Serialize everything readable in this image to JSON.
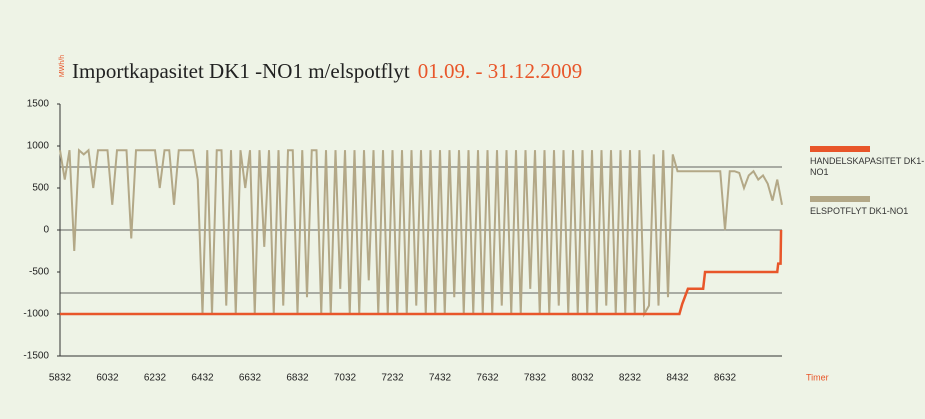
{
  "chart_data": {
    "type": "line",
    "title": "Importkapasitet DK1 -NO1 m/elspotflyt",
    "subtitle": "01.09. - 31.12.2009",
    "y_label": "MWh/h",
    "x_label": "Timer",
    "xlim": [
      5832,
      8872
    ],
    "ylim": [
      -1500,
      1500
    ],
    "xticks": [
      5832,
      6032,
      6232,
      6432,
      6632,
      6832,
      7032,
      7232,
      7432,
      7632,
      7832,
      8032,
      8232,
      8432,
      8632
    ],
    "yticks": [
      -1500,
      -1000,
      -500,
      0,
      500,
      1000,
      1500
    ],
    "hlines": [
      -750,
      0,
      750
    ],
    "legend": "right",
    "series": [
      {
        "name": "HANDELSKAPASITET DK1-NO1",
        "color": "#e8562a",
        "x": [
          5832,
          8440,
          8452,
          8476,
          8540,
          8548,
          8852,
          8856,
          8866,
          8868
        ],
        "values": [
          -1000,
          -1000,
          -880,
          -700,
          -700,
          -500,
          -500,
          -400,
          -400,
          0
        ]
      },
      {
        "name": "ELSPOTFLYT DK1-NO1",
        "color": "#b3a887",
        "x": [
          5832,
          5852,
          5872,
          5892,
          5912,
          5932,
          5952,
          5972,
          5992,
          6012,
          6032,
          6052,
          6072,
          6092,
          6112,
          6132,
          6152,
          6172,
          6192,
          6212,
          6232,
          6252,
          6272,
          6292,
          6312,
          6332,
          6352,
          6372,
          6392,
          6412,
          6432,
          6452,
          6472,
          6492,
          6512,
          6532,
          6552,
          6572,
          6592,
          6612,
          6632,
          6652,
          6672,
          6692,
          6712,
          6732,
          6752,
          6772,
          6792,
          6812,
          6832,
          6852,
          6872,
          6892,
          6912,
          6932,
          6952,
          6972,
          6992,
          7012,
          7032,
          7052,
          7072,
          7092,
          7112,
          7132,
          7152,
          7172,
          7192,
          7212,
          7232,
          7252,
          7272,
          7292,
          7312,
          7332,
          7352,
          7372,
          7392,
          7412,
          7432,
          7452,
          7472,
          7492,
          7512,
          7532,
          7552,
          7572,
          7592,
          7612,
          7632,
          7652,
          7672,
          7692,
          7712,
          7732,
          7752,
          7772,
          7792,
          7812,
          7832,
          7852,
          7872,
          7892,
          7912,
          7932,
          7952,
          7972,
          7992,
          8012,
          8032,
          8052,
          8072,
          8092,
          8112,
          8132,
          8152,
          8172,
          8192,
          8212,
          8232,
          8252,
          8272,
          8292,
          8312,
          8332,
          8352,
          8372,
          8392,
          8412,
          8432,
          8452,
          8472,
          8492,
          8512,
          8532,
          8552,
          8572,
          8592,
          8612,
          8632,
          8652,
          8672,
          8692,
          8712,
          8732,
          8752,
          8772,
          8792,
          8812,
          8832,
          8852,
          8872
        ],
        "values": [
          950,
          600,
          950,
          -250,
          950,
          900,
          950,
          500,
          950,
          950,
          950,
          300,
          950,
          950,
          950,
          -100,
          950,
          950,
          950,
          950,
          950,
          500,
          950,
          950,
          300,
          950,
          950,
          950,
          950,
          600,
          -1000,
          950,
          -1000,
          950,
          950,
          -900,
          950,
          -1000,
          950,
          500,
          950,
          -1000,
          950,
          -200,
          950,
          -1000,
          950,
          -900,
          950,
          950,
          -1000,
          950,
          -800,
          950,
          950,
          -1000,
          950,
          -1000,
          950,
          -700,
          950,
          -1000,
          950,
          -1000,
          950,
          -600,
          950,
          -1000,
          950,
          -1000,
          950,
          -1000,
          950,
          -1000,
          950,
          -900,
          950,
          -1000,
          950,
          -1000,
          950,
          -1000,
          950,
          -800,
          950,
          -1000,
          950,
          -1000,
          950,
          -1000,
          950,
          -1000,
          950,
          -900,
          950,
          -1000,
          950,
          -1000,
          950,
          -700,
          950,
          -1000,
          950,
          -1000,
          950,
          -900,
          950,
          -1000,
          950,
          -1000,
          950,
          -1000,
          950,
          -1000,
          950,
          -900,
          950,
          -1000,
          950,
          -1000,
          950,
          -1000,
          950,
          -1000,
          -900,
          900,
          -900,
          950,
          -800,
          900,
          700,
          700,
          700,
          700,
          700,
          700,
          700,
          700,
          700,
          700,
          0,
          700,
          700,
          680,
          500,
          650,
          700,
          600,
          650,
          550,
          350,
          600,
          300
        ]
      }
    ]
  }
}
